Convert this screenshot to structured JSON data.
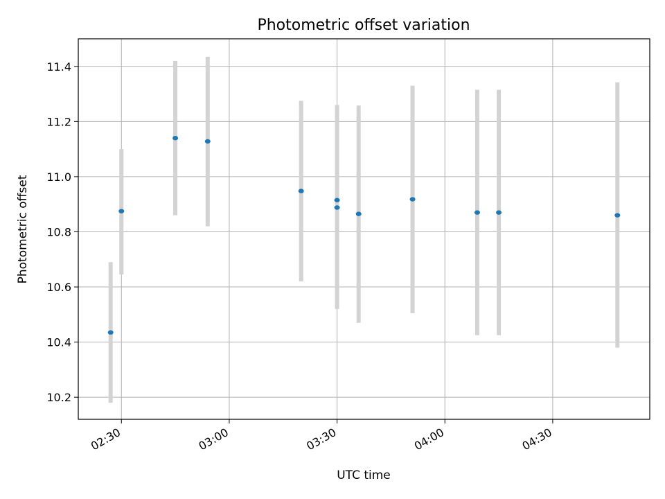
{
  "chart_data": {
    "type": "scatter",
    "title": "Photometric offset variation",
    "xlabel": "UTC time",
    "ylabel": "Photometric offset",
    "xlim": [
      "02:18",
      "04:57"
    ],
    "ylim": [
      10.12,
      11.5
    ],
    "x_ticks": [
      "02:30",
      "03:00",
      "03:30",
      "04:00",
      "04:30"
    ],
    "y_ticks": [
      "10.2",
      "10.4",
      "10.6",
      "10.8",
      "11.0",
      "11.2",
      "11.4"
    ],
    "grid": true,
    "marker_color": "#1f77b4",
    "errorbar_color": "#d3d3d3",
    "points": [
      {
        "x": "02:27",
        "y": 10.435,
        "ylow": 10.18,
        "yhigh": 10.69
      },
      {
        "x": "02:30",
        "y": 10.875,
        "ylow": 10.645,
        "yhigh": 11.1
      },
      {
        "x": "02:45",
        "y": 11.14,
        "ylow": 10.86,
        "yhigh": 11.42
      },
      {
        "x": "02:54",
        "y": 11.128,
        "ylow": 10.82,
        "yhigh": 11.435
      },
      {
        "x": "03:20",
        "y": 10.948,
        "ylow": 10.62,
        "yhigh": 11.275
      },
      {
        "x": "03:30",
        "y": 10.915,
        "ylow": null,
        "yhigh": null
      },
      {
        "x": "03:30",
        "y": 10.888,
        "ylow": 10.52,
        "yhigh": 11.26
      },
      {
        "x": "03:36",
        "y": 10.865,
        "ylow": 10.47,
        "yhigh": 11.258
      },
      {
        "x": "03:51",
        "y": 10.918,
        "ylow": 10.505,
        "yhigh": 11.33
      },
      {
        "x": "04:09",
        "y": 10.87,
        "ylow": 10.425,
        "yhigh": 11.315
      },
      {
        "x": "04:15",
        "y": 10.87,
        "ylow": 10.425,
        "yhigh": 11.315
      },
      {
        "x": "04:48",
        "y": 10.86,
        "ylow": 10.38,
        "yhigh": 11.342
      }
    ]
  }
}
